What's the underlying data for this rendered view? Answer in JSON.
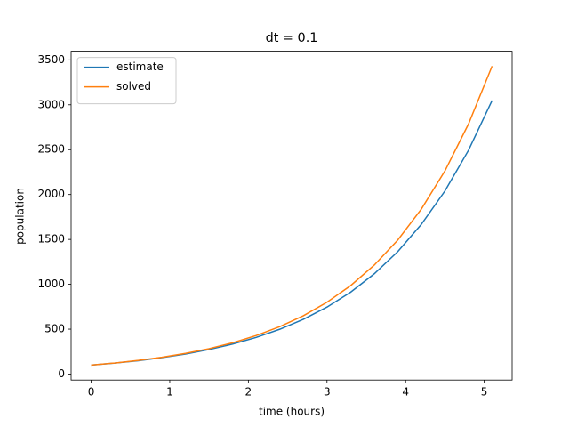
{
  "chart_data": {
    "type": "line",
    "title": "dt = 0.1",
    "x_label": "time (hours)",
    "y_label": "population",
    "x": [
      0,
      0.3,
      0.6,
      0.9,
      1.2,
      1.5,
      1.8,
      2.1,
      2.4,
      2.7,
      3.0,
      3.3,
      3.6,
      3.9,
      4.2,
      4.5,
      4.8,
      5.1
    ],
    "series": [
      {
        "name": "estimate",
        "color": "#1f77b4",
        "values": [
          100,
          122,
          149,
          183,
          223,
          273,
          334,
          408,
          499,
          610,
          746,
          912,
          1116,
          1364,
          1668,
          2039,
          2493,
          3048
        ]
      },
      {
        "name": "solved",
        "color": "#ff7f0e",
        "values": [
          100,
          123,
          152,
          187,
          230,
          283,
          348,
          429,
          528,
          650,
          800,
          985,
          1213,
          1493,
          1838,
          2263,
          2786,
          3430
        ]
      }
    ],
    "xlim": [
      -0.255,
      5.355
    ],
    "ylim": [
      -66.5,
      3596.5
    ],
    "xticks": [
      0,
      1,
      2,
      3,
      4,
      5
    ],
    "yticks": [
      0,
      500,
      1000,
      1500,
      2000,
      2500,
      3000,
      3500
    ],
    "grid": false,
    "legend": "upper-left"
  }
}
